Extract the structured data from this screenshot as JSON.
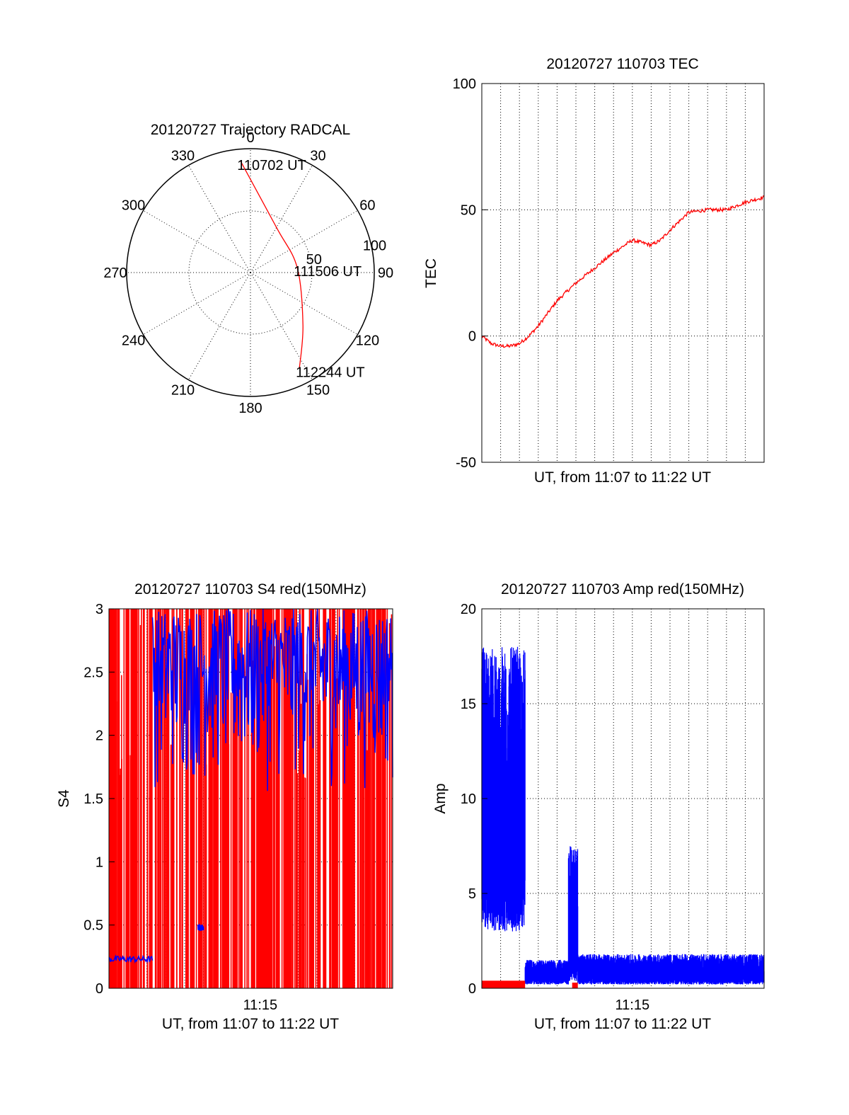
{
  "chart_data": [
    {
      "id": "trajectory",
      "type": "polar",
      "title": "20120727 Trajectory RADCAL",
      "angle_labels": [
        "0",
        "30",
        "60",
        "90",
        "120",
        "150",
        "180",
        "210",
        "240",
        "270",
        "300",
        "330"
      ],
      "radial_labels": [
        "50",
        "100"
      ],
      "radial_ticks": [
        50,
        100
      ],
      "rmax": 100,
      "trajectory": {
        "color": "#ff0000",
        "points": [
          {
            "az": -5,
            "r": 90
          },
          {
            "az": 30,
            "r": 42
          },
          {
            "az": 84,
            "r": 38
          },
          {
            "az": 135,
            "r": 60
          },
          {
            "az": 153,
            "r": 87
          }
        ]
      },
      "annotations": [
        {
          "text": "110702 UT",
          "az": -5,
          "r": 90
        },
        {
          "text": "111506 UT",
          "az": 84,
          "r": 38
        },
        {
          "text": "112244 UT",
          "az": 153,
          "r": 87
        }
      ]
    },
    {
      "id": "tec",
      "type": "line",
      "title": "20120727 110703 TEC",
      "xlabel": "UT, from 11:07 to 11:22 UT",
      "ylabel": "TEC",
      "xlim": [
        0,
        15
      ],
      "ylim": [
        -50,
        100
      ],
      "yticks": [
        -50,
        0,
        50,
        100
      ],
      "ytick_labels": [
        "-50",
        "0",
        "50",
        "100"
      ],
      "x_gridlines": 15,
      "series": [
        {
          "color": "#ff0000",
          "x": [
            0,
            0.5,
            1,
            1.5,
            2,
            2.5,
            3,
            3.5,
            4,
            5,
            6,
            7,
            8,
            9,
            9.5,
            10,
            11,
            12,
            13,
            14,
            15
          ],
          "y": [
            0,
            -3,
            -4,
            -4,
            -3,
            0,
            4,
            9,
            14,
            21,
            27,
            33,
            38,
            36,
            38,
            42,
            49,
            50,
            50,
            53,
            55
          ]
        }
      ]
    },
    {
      "id": "s4",
      "type": "line",
      "title": "20120727 110703 S4 red(150MHz)",
      "xlabel": "UT, from 11:07 to 11:22 UT",
      "ylabel": "S4",
      "xlim": [
        0,
        15
      ],
      "ylim": [
        0,
        3
      ],
      "yticks": [
        0,
        0.5,
        1,
        1.5,
        2,
        2.5,
        3
      ],
      "ytick_labels": [
        "0",
        "0.5",
        "1",
        "1.5",
        "2",
        "2.5",
        "3"
      ],
      "xtick_positions": [
        8
      ],
      "xtick_labels": [
        "11:15"
      ],
      "series": [
        {
          "name": "",
          "color": "#ff0000",
          "style": "dense-spikes",
          "baseline": 0,
          "max": 3
        },
        {
          "name": "",
          "color": "#0000ff",
          "segments": [
            {
              "x": [
                0,
                2.3
              ],
              "level": 0.23
            },
            {
              "x": [
                4.7,
                5.0
              ],
              "level": 0.48
            },
            {
              "x": [
                2.3,
                15
              ],
              "level_range": [
                1.5,
                3
              ]
            }
          ]
        }
      ]
    },
    {
      "id": "amp",
      "type": "line",
      "title": "20120727 110703 Amp red(150MHz)",
      "xlabel": "UT, from 11:07 to 11:22 UT",
      "ylabel": "Amp",
      "xlim": [
        0,
        15
      ],
      "ylim": [
        0,
        20
      ],
      "yticks": [
        0,
        5,
        10,
        15,
        20
      ],
      "ytick_labels": [
        "0",
        "5",
        "10",
        "15",
        "20"
      ],
      "xtick_positions": [
        8
      ],
      "xtick_labels": [
        "11:15"
      ],
      "series": [
        {
          "name": "",
          "color": "#0000ff",
          "segments": [
            {
              "x": [
                0,
                2.3
              ],
              "level_range": [
                3,
                18
              ]
            },
            {
              "x": [
                2.3,
                4.6
              ],
              "level_range": [
                0.2,
                1.5
              ]
            },
            {
              "x": [
                4.6,
                5.1
              ],
              "level_range": [
                0.3,
                7.5
              ]
            },
            {
              "x": [
                5.1,
                15
              ],
              "level_range": [
                0.2,
                1.8
              ]
            }
          ]
        },
        {
          "name": "",
          "color": "#ff0000",
          "segments": [
            {
              "x": [
                0,
                2.3
              ],
              "level_range": [
                0,
                0.4
              ]
            },
            {
              "x": [
                4.8,
                5.1
              ],
              "level_range": [
                0,
                0.3
              ]
            }
          ]
        }
      ]
    }
  ]
}
